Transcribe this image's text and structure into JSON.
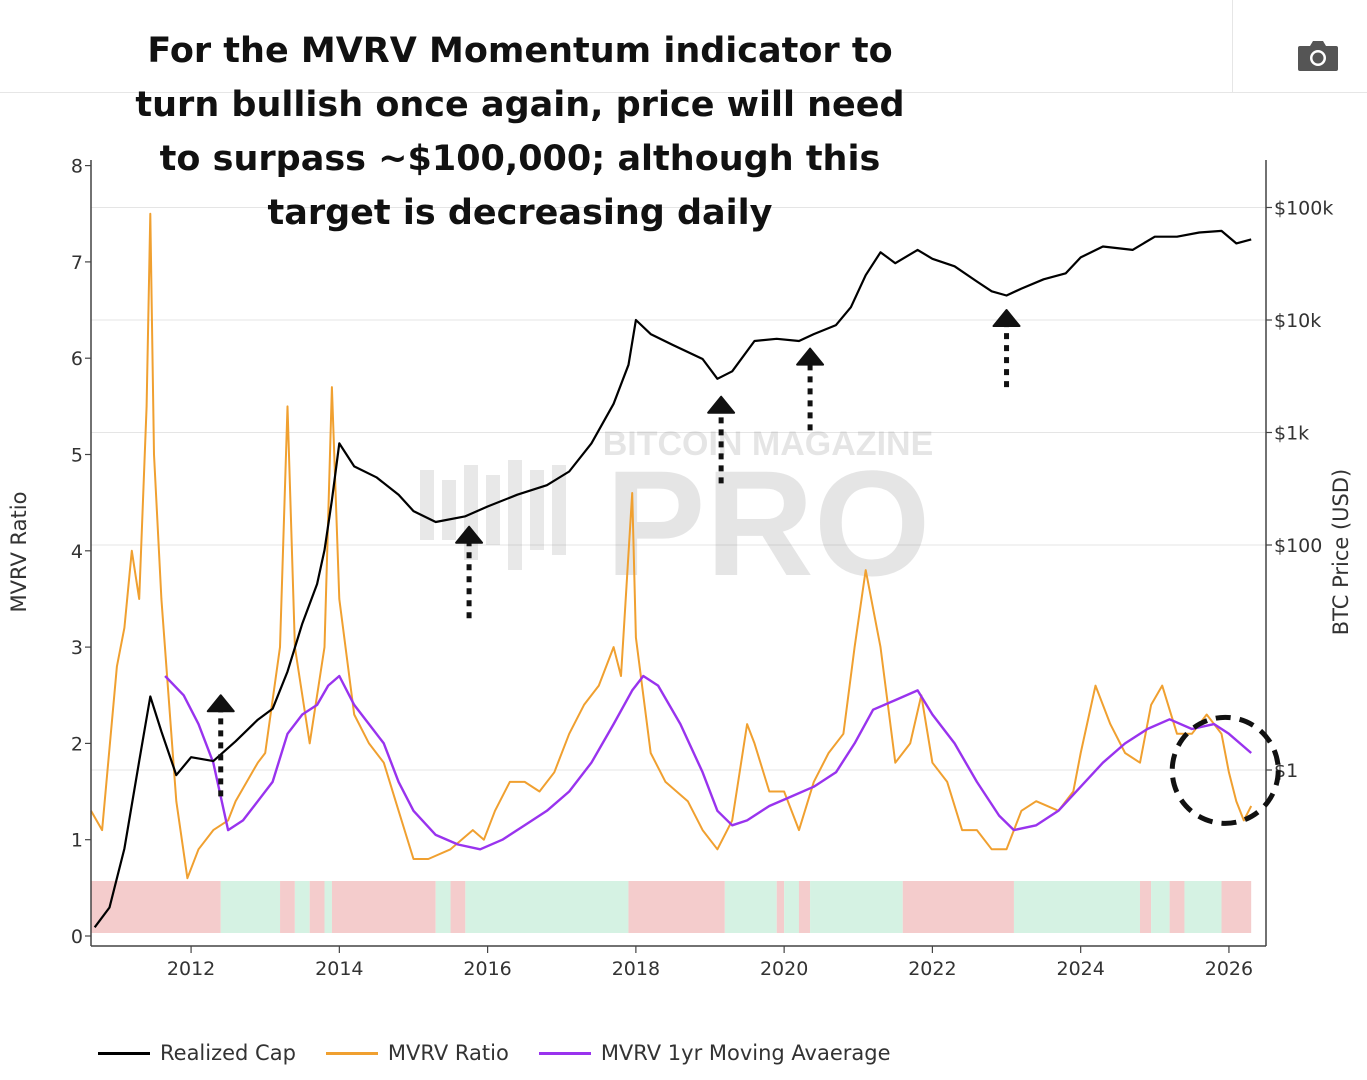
{
  "headline": {
    "lines": [
      "For the MVRV Momentum indicator to",
      "turn bullish once again, price will need",
      "to surpass ~$100,000; although this",
      "target is decreasing daily"
    ]
  },
  "toolbar": {
    "camera_icon": "camera-icon"
  },
  "watermark": {
    "top": "BITCOIN MAGAZINE",
    "main": "PRO"
  },
  "colors": {
    "realized_cap": "#000000",
    "mvrv_ratio": "#f0a030",
    "mvrv_ma": "#9933ee",
    "band_red": "#f4cccc",
    "band_green": "#d5f2e3",
    "grid": "#e5e5e5"
  },
  "chart_data": {
    "type": "line",
    "y_left": {
      "label": "MVRV Ratio",
      "ticks": [
        "0",
        "1",
        "2",
        "3",
        "4",
        "5",
        "6",
        "7",
        "8"
      ],
      "range": [
        0,
        8
      ]
    },
    "y_right": {
      "label": "BTC Price (USD)",
      "scale": "log",
      "ticks": [
        "$1",
        "$100",
        "$1k",
        "$10k",
        "$100k"
      ],
      "tick_values": [
        1,
        100,
        1000,
        10000,
        100000
      ]
    },
    "x": {
      "ticks": [
        "2012",
        "2014",
        "2016",
        "2018",
        "2020",
        "2022",
        "2024",
        "2026"
      ],
      "range": [
        2010.65,
        2026.5
      ]
    },
    "series": [
      {
        "name": "Realized Cap",
        "axis": "right",
        "points": [
          [
            2010.7,
            0.04
          ],
          [
            2010.9,
            0.06
          ],
          [
            2011.1,
            0.2
          ],
          [
            2011.3,
            1.2
          ],
          [
            2011.45,
            4.5
          ],
          [
            2011.6,
            2.2
          ],
          [
            2011.8,
            0.9
          ],
          [
            2012.0,
            1.3
          ],
          [
            2012.3,
            1.2
          ],
          [
            2012.6,
            1.8
          ],
          [
            2012.9,
            2.8
          ],
          [
            2013.1,
            3.5
          ],
          [
            2013.3,
            7.5
          ],
          [
            2013.5,
            20
          ],
          [
            2013.7,
            45
          ],
          [
            2013.8,
            90
          ],
          [
            2013.9,
            250
          ],
          [
            2014.0,
            800
          ],
          [
            2014.2,
            500
          ],
          [
            2014.5,
            400
          ],
          [
            2014.8,
            280
          ],
          [
            2015.0,
            200
          ],
          [
            2015.3,
            160
          ],
          [
            2015.7,
            180
          ],
          [
            2016.0,
            220
          ],
          [
            2016.4,
            280
          ],
          [
            2016.8,
            340
          ],
          [
            2017.1,
            450
          ],
          [
            2017.4,
            800
          ],
          [
            2017.7,
            1800
          ],
          [
            2017.9,
            4000
          ],
          [
            2018.0,
            10000
          ],
          [
            2018.2,
            7500
          ],
          [
            2018.5,
            6000
          ],
          [
            2018.9,
            4500
          ],
          [
            2019.1,
            3000
          ],
          [
            2019.3,
            3500
          ],
          [
            2019.6,
            6500
          ],
          [
            2019.9,
            6800
          ],
          [
            2020.2,
            6500
          ],
          [
            2020.4,
            7500
          ],
          [
            2020.7,
            9000
          ],
          [
            2020.9,
            13000
          ],
          [
            2021.1,
            25000
          ],
          [
            2021.3,
            40000
          ],
          [
            2021.5,
            32000
          ],
          [
            2021.8,
            42000
          ],
          [
            2022.0,
            35000
          ],
          [
            2022.3,
            30000
          ],
          [
            2022.6,
            22000
          ],
          [
            2022.8,
            18000
          ],
          [
            2023.0,
            16500
          ],
          [
            2023.2,
            19000
          ],
          [
            2023.5,
            23000
          ],
          [
            2023.8,
            26000
          ],
          [
            2024.0,
            36000
          ],
          [
            2024.3,
            45000
          ],
          [
            2024.7,
            42000
          ],
          [
            2025.0,
            55000
          ],
          [
            2025.3,
            55000
          ],
          [
            2025.6,
            60000
          ],
          [
            2025.9,
            62000
          ],
          [
            2026.1,
            48000
          ],
          [
            2026.3,
            52000
          ]
        ]
      },
      {
        "name": "MVRV Ratio",
        "axis": "left",
        "points": [
          [
            2010.65,
            1.3
          ],
          [
            2010.8,
            1.1
          ],
          [
            2011.0,
            2.8
          ],
          [
            2011.1,
            3.2
          ],
          [
            2011.2,
            4.0
          ],
          [
            2011.3,
            3.5
          ],
          [
            2011.4,
            5.5
          ],
          [
            2011.45,
            7.5
          ],
          [
            2011.5,
            5.0
          ],
          [
            2011.6,
            3.5
          ],
          [
            2011.8,
            1.4
          ],
          [
            2011.95,
            0.6
          ],
          [
            2012.1,
            0.9
          ],
          [
            2012.3,
            1.1
          ],
          [
            2012.5,
            1.2
          ],
          [
            2012.6,
            1.4
          ],
          [
            2012.9,
            1.8
          ],
          [
            2013.0,
            1.9
          ],
          [
            2013.2,
            3.0
          ],
          [
            2013.3,
            5.5
          ],
          [
            2013.4,
            3.0
          ],
          [
            2013.6,
            2.0
          ],
          [
            2013.8,
            3.0
          ],
          [
            2013.9,
            5.7
          ],
          [
            2014.0,
            3.5
          ],
          [
            2014.2,
            2.3
          ],
          [
            2014.4,
            2.0
          ],
          [
            2014.6,
            1.8
          ],
          [
            2014.8,
            1.3
          ],
          [
            2015.0,
            0.8
          ],
          [
            2015.2,
            0.8
          ],
          [
            2015.5,
            0.9
          ],
          [
            2015.8,
            1.1
          ],
          [
            2015.95,
            1.0
          ],
          [
            2016.1,
            1.3
          ],
          [
            2016.3,
            1.6
          ],
          [
            2016.5,
            1.6
          ],
          [
            2016.7,
            1.5
          ],
          [
            2016.9,
            1.7
          ],
          [
            2017.1,
            2.1
          ],
          [
            2017.3,
            2.4
          ],
          [
            2017.5,
            2.6
          ],
          [
            2017.7,
            3.0
          ],
          [
            2017.8,
            2.7
          ],
          [
            2017.95,
            4.6
          ],
          [
            2018.0,
            3.1
          ],
          [
            2018.2,
            1.9
          ],
          [
            2018.4,
            1.6
          ],
          [
            2018.7,
            1.4
          ],
          [
            2018.9,
            1.1
          ],
          [
            2019.1,
            0.9
          ],
          [
            2019.3,
            1.2
          ],
          [
            2019.5,
            2.2
          ],
          [
            2019.6,
            2.0
          ],
          [
            2019.8,
            1.5
          ],
          [
            2020.0,
            1.5
          ],
          [
            2020.2,
            1.1
          ],
          [
            2020.4,
            1.6
          ],
          [
            2020.6,
            1.9
          ],
          [
            2020.8,
            2.1
          ],
          [
            2020.95,
            3.0
          ],
          [
            2021.1,
            3.8
          ],
          [
            2021.3,
            3.0
          ],
          [
            2021.5,
            1.8
          ],
          [
            2021.7,
            2.0
          ],
          [
            2021.85,
            2.5
          ],
          [
            2022.0,
            1.8
          ],
          [
            2022.2,
            1.6
          ],
          [
            2022.4,
            1.1
          ],
          [
            2022.6,
            1.1
          ],
          [
            2022.8,
            0.9
          ],
          [
            2023.0,
            0.9
          ],
          [
            2023.2,
            1.3
          ],
          [
            2023.4,
            1.4
          ],
          [
            2023.7,
            1.3
          ],
          [
            2023.9,
            1.5
          ],
          [
            2024.0,
            1.9
          ],
          [
            2024.2,
            2.6
          ],
          [
            2024.4,
            2.2
          ],
          [
            2024.6,
            1.9
          ],
          [
            2024.8,
            1.8
          ],
          [
            2024.95,
            2.4
          ],
          [
            2025.1,
            2.6
          ],
          [
            2025.3,
            2.1
          ],
          [
            2025.5,
            2.1
          ],
          [
            2025.7,
            2.3
          ],
          [
            2025.9,
            2.1
          ],
          [
            2026.0,
            1.7
          ],
          [
            2026.1,
            1.4
          ],
          [
            2026.2,
            1.2
          ],
          [
            2026.3,
            1.35
          ]
        ]
      },
      {
        "name": "MVRV 1yr Moving Avaerage",
        "axis": "left",
        "points": [
          [
            2011.65,
            2.7
          ],
          [
            2011.9,
            2.5
          ],
          [
            2012.1,
            2.2
          ],
          [
            2012.3,
            1.8
          ],
          [
            2012.5,
            1.1
          ],
          [
            2012.7,
            1.2
          ],
          [
            2012.9,
            1.4
          ],
          [
            2013.1,
            1.6
          ],
          [
            2013.3,
            2.1
          ],
          [
            2013.5,
            2.3
          ],
          [
            2013.7,
            2.4
          ],
          [
            2013.85,
            2.6
          ],
          [
            2014.0,
            2.7
          ],
          [
            2014.2,
            2.4
          ],
          [
            2014.4,
            2.2
          ],
          [
            2014.6,
            2.0
          ],
          [
            2014.8,
            1.6
          ],
          [
            2015.0,
            1.3
          ],
          [
            2015.3,
            1.05
          ],
          [
            2015.6,
            0.95
          ],
          [
            2015.9,
            0.9
          ],
          [
            2016.2,
            1.0
          ],
          [
            2016.5,
            1.15
          ],
          [
            2016.8,
            1.3
          ],
          [
            2017.1,
            1.5
          ],
          [
            2017.4,
            1.8
          ],
          [
            2017.7,
            2.2
          ],
          [
            2017.95,
            2.55
          ],
          [
            2018.1,
            2.7
          ],
          [
            2018.3,
            2.6
          ],
          [
            2018.6,
            2.2
          ],
          [
            2018.9,
            1.7
          ],
          [
            2019.1,
            1.3
          ],
          [
            2019.3,
            1.15
          ],
          [
            2019.5,
            1.2
          ],
          [
            2019.8,
            1.35
          ],
          [
            2020.1,
            1.45
          ],
          [
            2020.4,
            1.55
          ],
          [
            2020.7,
            1.7
          ],
          [
            2020.95,
            2.0
          ],
          [
            2021.2,
            2.35
          ],
          [
            2021.5,
            2.45
          ],
          [
            2021.8,
            2.55
          ],
          [
            2022.0,
            2.3
          ],
          [
            2022.3,
            2.0
          ],
          [
            2022.6,
            1.6
          ],
          [
            2022.9,
            1.25
          ],
          [
            2023.1,
            1.1
          ],
          [
            2023.4,
            1.15
          ],
          [
            2023.7,
            1.3
          ],
          [
            2024.0,
            1.55
          ],
          [
            2024.3,
            1.8
          ],
          [
            2024.6,
            2.0
          ],
          [
            2024.9,
            2.15
          ],
          [
            2025.2,
            2.25
          ],
          [
            2025.5,
            2.15
          ],
          [
            2025.8,
            2.2
          ],
          [
            2026.0,
            2.1
          ],
          [
            2026.3,
            1.9
          ]
        ]
      }
    ],
    "signal_bands": [
      {
        "from": 2010.65,
        "to": 2012.4,
        "state": "red"
      },
      {
        "from": 2012.4,
        "to": 2013.2,
        "state": "green"
      },
      {
        "from": 2013.2,
        "to": 2013.4,
        "state": "red"
      },
      {
        "from": 2013.4,
        "to": 2013.6,
        "state": "green"
      },
      {
        "from": 2013.6,
        "to": 2013.8,
        "state": "red"
      },
      {
        "from": 2013.8,
        "to": 2013.9,
        "state": "green"
      },
      {
        "from": 2013.9,
        "to": 2015.3,
        "state": "red"
      },
      {
        "from": 2015.3,
        "to": 2015.5,
        "state": "green"
      },
      {
        "from": 2015.5,
        "to": 2015.7,
        "state": "red"
      },
      {
        "from": 2015.7,
        "to": 2017.9,
        "state": "green"
      },
      {
        "from": 2017.9,
        "to": 2019.2,
        "state": "red"
      },
      {
        "from": 2019.2,
        "to": 2019.9,
        "state": "green"
      },
      {
        "from": 2019.9,
        "to": 2020.0,
        "state": "red"
      },
      {
        "from": 2020.0,
        "to": 2020.2,
        "state": "green"
      },
      {
        "from": 2020.2,
        "to": 2020.35,
        "state": "red"
      },
      {
        "from": 2020.35,
        "to": 2021.6,
        "state": "green"
      },
      {
        "from": 2021.6,
        "to": 2023.1,
        "state": "red"
      },
      {
        "from": 2023.1,
        "to": 2024.8,
        "state": "green"
      },
      {
        "from": 2024.8,
        "to": 2024.95,
        "state": "red"
      },
      {
        "from": 2024.95,
        "to": 2025.2,
        "state": "green"
      },
      {
        "from": 2025.2,
        "to": 2025.4,
        "state": "red"
      },
      {
        "from": 2025.4,
        "to": 2025.9,
        "state": "green"
      },
      {
        "from": 2025.9,
        "to": 2026.3,
        "state": "red"
      }
    ],
    "annotations": {
      "arrows_up": [
        {
          "x": 2012.4,
          "base": 1.45,
          "tip": 2.5
        },
        {
          "x": 2015.75,
          "base": 3.3,
          "tip": 4.25
        },
        {
          "x": 2019.15,
          "base": 4.7,
          "tip": 5.6
        },
        {
          "x": 2020.35,
          "base": 5.25,
          "tip": 6.1
        },
        {
          "x": 2023.0,
          "base": 5.7,
          "tip": 6.5
        }
      ],
      "circle": {
        "x": 2025.95,
        "y": 1.72
      }
    },
    "legend": [
      "Realized Cap",
      "MVRV Ratio",
      "MVRV 1yr Moving Avaerage"
    ],
    "legend_position": "bottom",
    "grid": true
  }
}
